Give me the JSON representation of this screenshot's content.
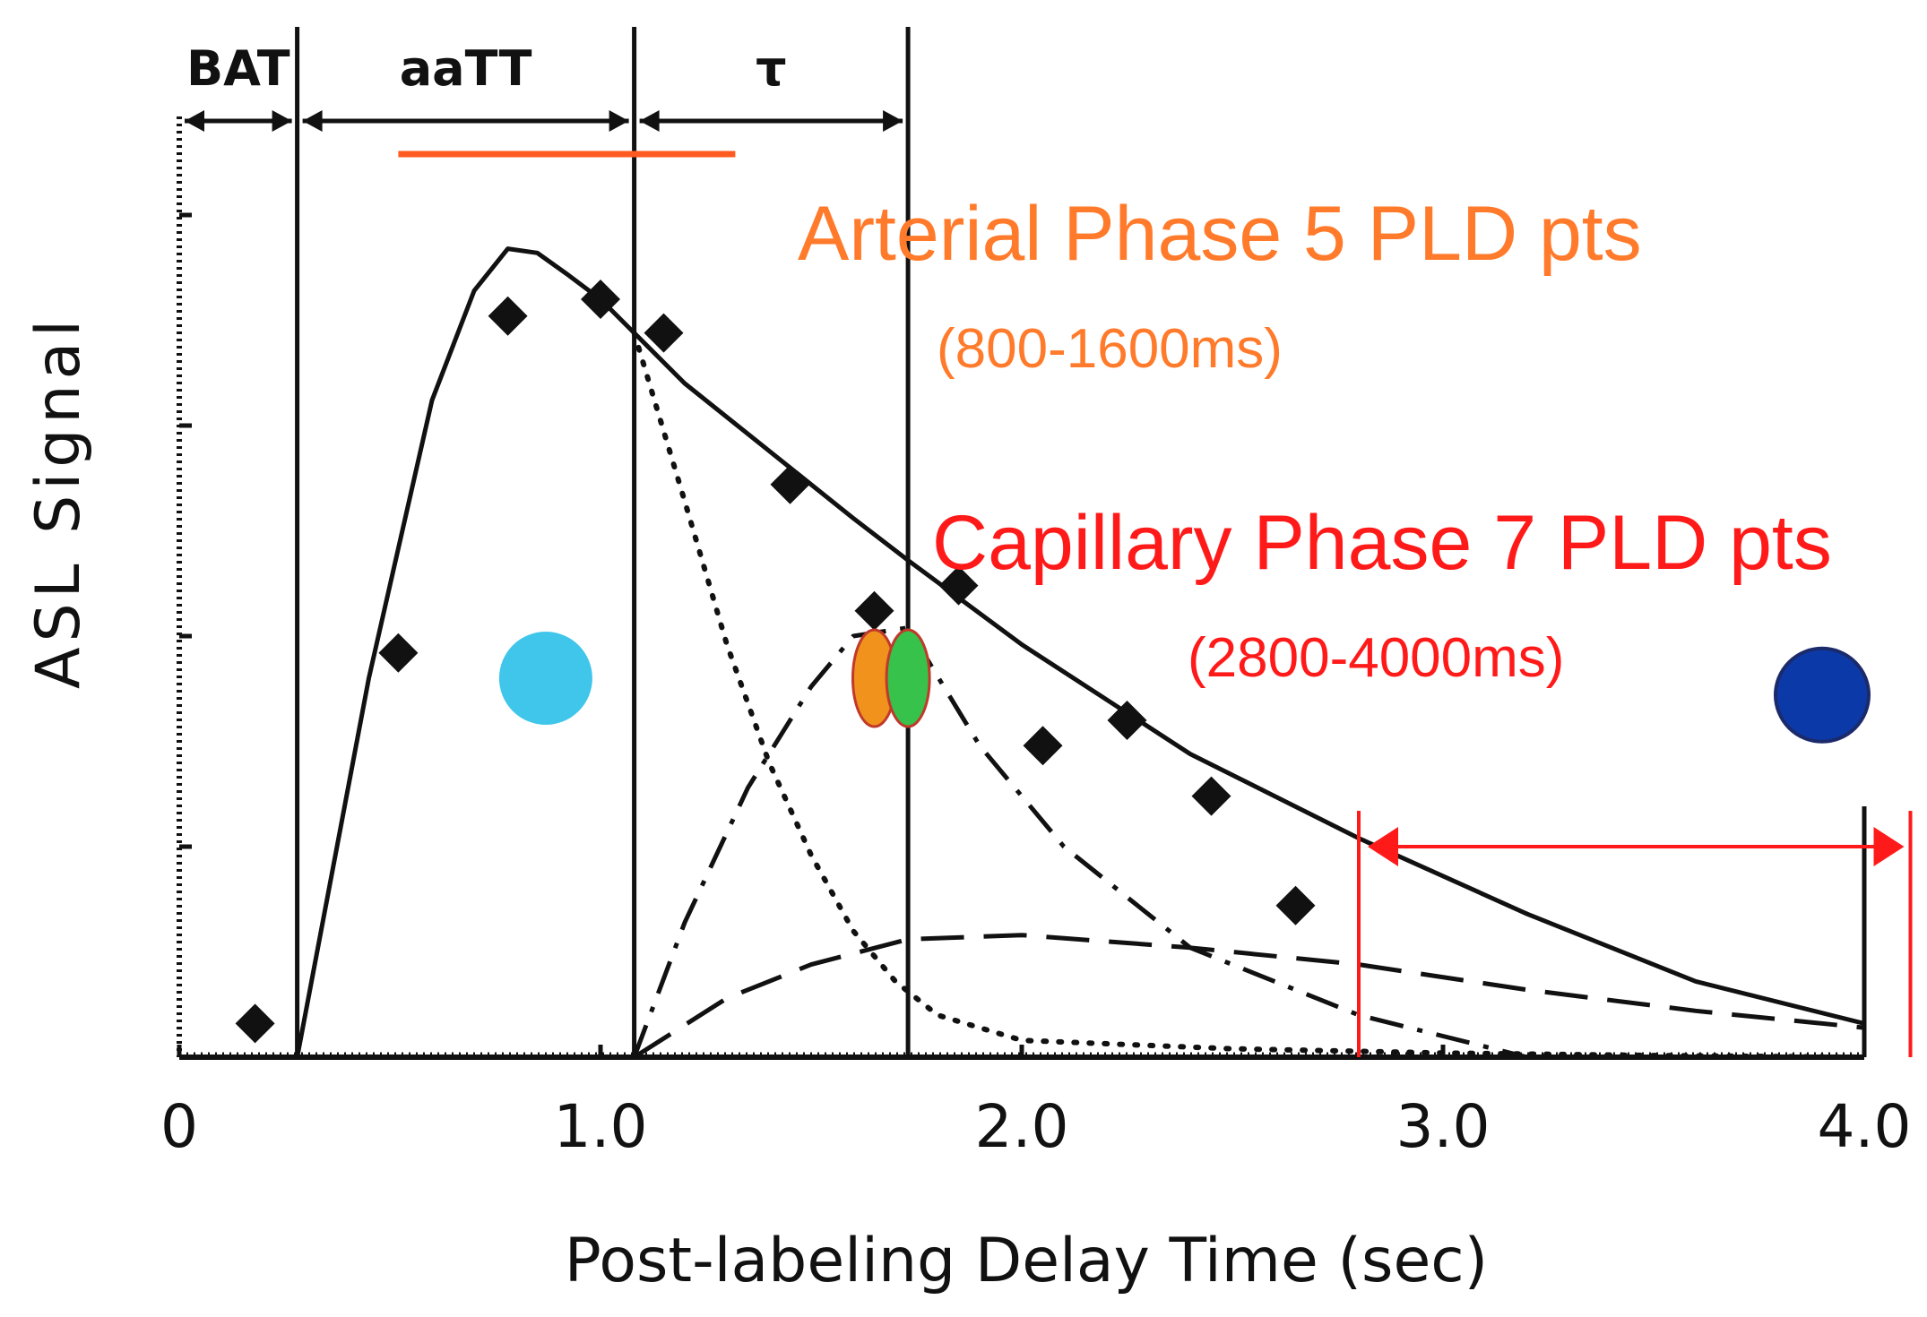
{
  "chart_data": {
    "type": "line",
    "xlabel": "Post-labeling Delay Time (sec)",
    "ylabel": "ASL Signal",
    "xlim": [
      0,
      4.0
    ],
    "ylim": [
      0,
      1.0
    ],
    "x_tick_labels": [
      "0",
      "1.0",
      "2.0",
      "3.0",
      "4.0"
    ],
    "x_tick_values": [
      0,
      1.0,
      2.0,
      3.0,
      4.0
    ],
    "y_tick_values": [
      0.25,
      0.5,
      0.75,
      1.0
    ],
    "intervals": [
      {
        "label": "BAT",
        "start": 0,
        "end": 0.28
      },
      {
        "label": "aaTT",
        "start": 0.28,
        "end": 1.08
      },
      {
        "label": "τ",
        "start": 1.08,
        "end": 1.73
      }
    ],
    "vertical_lines_x": [
      0.28,
      1.08,
      1.73
    ],
    "series": [
      {
        "style": "solid",
        "x": [
          0.28,
          0.45,
          0.6,
          0.7,
          0.78,
          0.85,
          0.92,
          1.0,
          1.08,
          1.2,
          1.4,
          1.6,
          1.73,
          2.0,
          2.4,
          2.8,
          3.2,
          3.6,
          4.0
        ],
        "y": [
          0.0,
          0.45,
          0.78,
          0.91,
          0.96,
          0.955,
          0.93,
          0.9,
          0.86,
          0.8,
          0.72,
          0.64,
          0.59,
          0.49,
          0.36,
          0.26,
          0.17,
          0.09,
          0.04
        ]
      },
      {
        "style": "dotted",
        "x": [
          1.08,
          1.2,
          1.3,
          1.4,
          1.5,
          1.6,
          1.7,
          1.8,
          2.0,
          2.5,
          3.0,
          3.5,
          4.0
        ],
        "y": [
          0.86,
          0.66,
          0.49,
          0.35,
          0.24,
          0.15,
          0.09,
          0.05,
          0.02,
          0.01,
          0.005,
          0.002,
          0.0
        ]
      },
      {
        "style": "dashdot",
        "x": [
          1.08,
          1.2,
          1.35,
          1.5,
          1.6,
          1.73,
          1.9,
          2.1,
          2.4,
          2.8,
          3.2
        ],
        "y": [
          0.0,
          0.16,
          0.32,
          0.44,
          0.5,
          0.51,
          0.37,
          0.25,
          0.13,
          0.05,
          0.0
        ]
      },
      {
        "style": "dashed",
        "x": [
          1.08,
          1.3,
          1.5,
          1.73,
          2.0,
          2.4,
          2.8,
          3.2,
          3.6,
          4.0
        ],
        "y": [
          0.0,
          0.07,
          0.11,
          0.14,
          0.145,
          0.13,
          0.11,
          0.08,
          0.055,
          0.035
        ]
      }
    ],
    "points": [
      {
        "x": 0.18,
        "y": 0.04
      },
      {
        "x": 0.52,
        "y": 0.48
      },
      {
        "x": 0.78,
        "y": 0.88
      },
      {
        "x": 1.0,
        "y": 0.9
      },
      {
        "x": 1.15,
        "y": 0.86
      },
      {
        "x": 1.45,
        "y": 0.68
      },
      {
        "x": 1.65,
        "y": 0.53
      },
      {
        "x": 1.85,
        "y": 0.56
      },
      {
        "x": 2.05,
        "y": 0.37
      },
      {
        "x": 2.25,
        "y": 0.4
      },
      {
        "x": 2.45,
        "y": 0.31
      },
      {
        "x": 2.65,
        "y": 0.18
      }
    ],
    "markers": [
      {
        "color": "#3fc6ea",
        "shape": "circle",
        "x": 0.87,
        "y": 0.45
      },
      {
        "color": "#f0921c",
        "shape": "ellipse",
        "x": 1.65,
        "y": 0.45
      },
      {
        "color": "#36c24b",
        "shape": "ellipse",
        "x": 1.73,
        "y": 0.45
      },
      {
        "color": "#0b3aa8",
        "shape": "circle",
        "x": 3.9,
        "y": 0.43
      }
    ],
    "arterial_bar": {
      "start": 0.52,
      "end": 1.32,
      "color": "#ff5a1f"
    },
    "capillary_bracket": {
      "start": 2.8,
      "end": 3.95,
      "color": "#ff1a1a"
    }
  },
  "annotations": {
    "arterial_title": "Arterial Phase 5 PLD pts",
    "arterial_range": "(800-1600ms)",
    "arterial_color": "#ff7a2a",
    "capillary_title": "Capillary Phase 7 PLD pts",
    "capillary_range": "(2800-4000ms)",
    "capillary_color": "#ff1a1a"
  }
}
